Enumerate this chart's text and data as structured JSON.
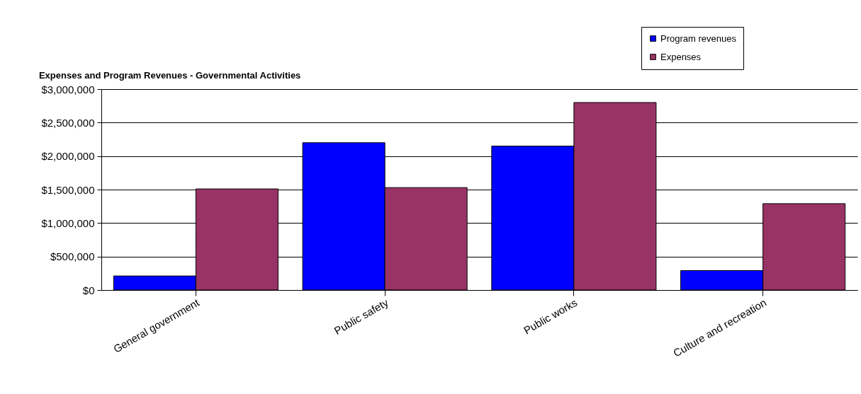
{
  "chart_data": {
    "type": "bar",
    "title": "Expenses and Program Revenues - Governmental Activities",
    "categories": [
      "General government",
      "Public safety",
      "Public works",
      "Culture and recreation"
    ],
    "series": [
      {
        "name": "Program revenues",
        "color": "#0000ff",
        "values": [
          210000,
          2200000,
          2150000,
          290000
        ]
      },
      {
        "name": "Expenses",
        "color": "#993366",
        "values": [
          1510000,
          1530000,
          2800000,
          1290000
        ]
      }
    ],
    "ylim": [
      0,
      3000000
    ],
    "yticks": [
      {
        "value": 0,
        "label": "$0"
      },
      {
        "value": 500000,
        "label": "$500,000"
      },
      {
        "value": 1000000,
        "label": "$1,000,000"
      },
      {
        "value": 1500000,
        "label": "$1,500,000"
      },
      {
        "value": 2000000,
        "label": "$2,000,000"
      },
      {
        "value": 2500000,
        "label": "$2,500,000"
      },
      {
        "value": 3000000,
        "label": "$3,000,000"
      }
    ],
    "grid": "y",
    "legend": "top right"
  }
}
